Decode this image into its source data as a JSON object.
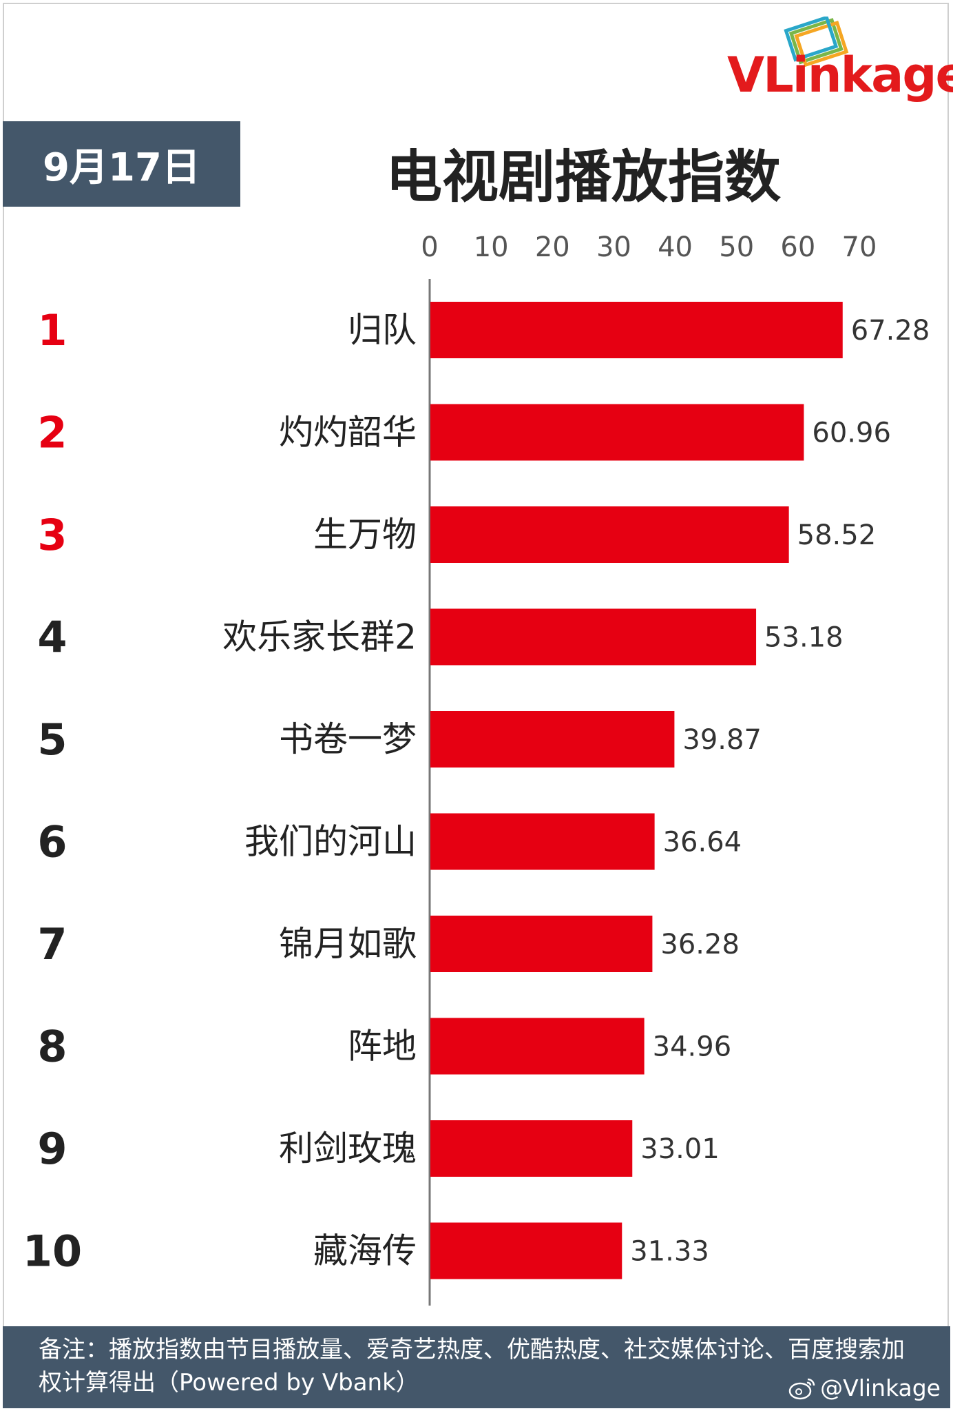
{
  "header": {
    "logo_text": "VLinkage",
    "date": "9月17日",
    "title": "电视剧播放指数"
  },
  "colors": {
    "bar": "#e60012",
    "rank_top": "#e60012",
    "rank_rest": "#222222",
    "banner": "#44576a"
  },
  "chart_data": {
    "type": "bar",
    "orientation": "horizontal",
    "title": "电视剧播放指数",
    "xlim": [
      0,
      70
    ],
    "x_ticks": [
      "0",
      "10",
      "20",
      "30",
      "40",
      "50",
      "60",
      "70"
    ],
    "axis_position": "top",
    "grid": false,
    "ranks": [
      "1",
      "2",
      "3",
      "4",
      "5",
      "6",
      "7",
      "8",
      "9",
      "10"
    ],
    "categories": [
      "归队",
      "灼灼韶华",
      "生万物",
      "欢乐家长群2",
      "书卷一梦",
      "我们的河山",
      "锦月如歌",
      "阵地",
      "利剑玫瑰",
      "藏海传"
    ],
    "values": [
      67.28,
      60.96,
      58.52,
      53.18,
      39.87,
      36.64,
      36.28,
      34.96,
      33.01,
      31.33
    ],
    "value_labels": [
      "67.28",
      "60.96",
      "58.52",
      "53.18",
      "39.87",
      "36.64",
      "36.28",
      "34.96",
      "33.01",
      "31.33"
    ]
  },
  "footer": {
    "note": "备注：播放指数由节目播放量、爱奇艺热度、优酷热度、社交媒体讨论、百度搜索加权计算得出（Powered by Vbank）",
    "weibo_handle": "@Vlinkage"
  }
}
